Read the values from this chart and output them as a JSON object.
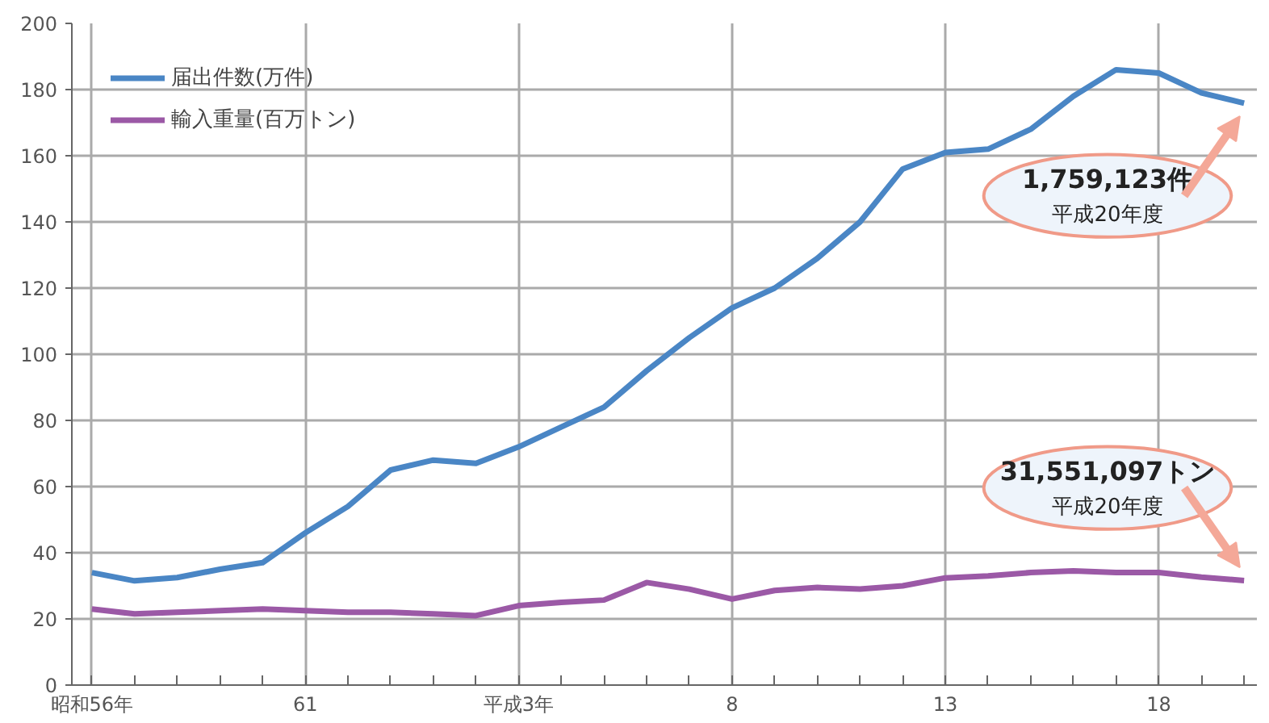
{
  "chart_data": {
    "type": "line",
    "categories": [
      "昭和56年",
      null,
      null,
      null,
      null,
      "61",
      null,
      null,
      null,
      null,
      "平成3年",
      null,
      null,
      null,
      null,
      "8",
      null,
      null,
      null,
      null,
      "13",
      null,
      null,
      null,
      null,
      "18",
      null,
      null
    ],
    "series": [
      {
        "name": "届出件数(万件)",
        "color": "#4a86c5",
        "values": [
          34,
          31.5,
          32.5,
          35,
          37,
          46,
          54,
          65,
          68,
          67,
          72,
          78,
          84,
          95,
          105,
          114,
          120,
          129,
          140,
          156,
          161,
          162,
          168,
          178,
          186,
          185,
          179,
          175.9
        ]
      },
      {
        "name": "輸入重量(百万トン)",
        "color": "#9b59a6",
        "values": [
          23,
          21.5,
          22,
          22.5,
          23,
          22.5,
          22,
          22,
          21.5,
          21,
          24,
          25,
          25.7,
          31,
          29,
          26,
          28.6,
          29.5,
          29,
          30,
          32.4,
          33,
          34,
          34.5,
          34,
          34,
          32.6,
          31.6
        ]
      }
    ],
    "ylim": [
      0,
      200
    ],
    "yticks": [
      0,
      20,
      40,
      60,
      80,
      100,
      120,
      140,
      160,
      180,
      200
    ],
    "grid": true,
    "legend": "top left",
    "marker": "none",
    "line_style": "solid",
    "annotations": [
      "1,759,123件",
      "平成20年度",
      "31,551,097トン",
      "平成20年度"
    ]
  }
}
